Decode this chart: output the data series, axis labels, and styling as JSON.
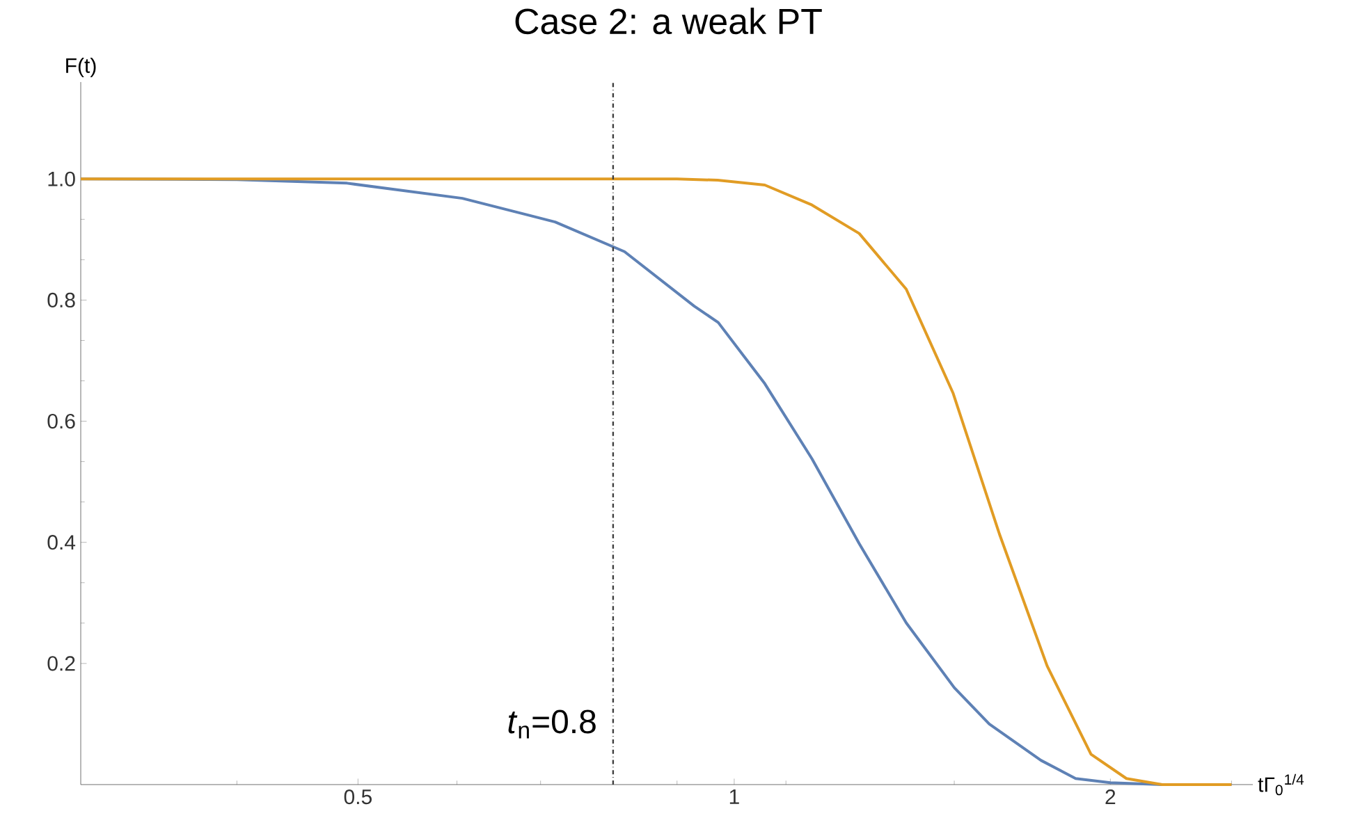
{
  "chart_data": {
    "type": "line",
    "title": "Case 2: a weak PT",
    "xlabel": "tΓ$_{0}$$^{1/4}$",
    "ylabel": "F(t)",
    "log": "x",
    "xlim": [
      0.3,
      2.6
    ],
    "xticks": [
      0.5,
      1,
      2
    ],
    "ylim": [
      0,
      1.16
    ],
    "yticks": [
      0.2,
      0.4,
      0.6,
      {
        "value": 0.8,
        "label": "0.8"
      },
      {
        "value": 1,
        "label": "1.0"
      }
    ],
    "grid": false,
    "legend": false,
    "marker": "none",
    "line_style": "solid",
    "series": [
      {
        "color": "#5e81b5",
        "x": [
          0.3,
          0.4,
          0.49,
          0.606,
          0.719,
          0.817,
          0.929,
          0.971,
          1.058,
          1.154,
          1.259,
          1.373,
          1.5,
          1.6,
          1.76,
          1.876,
          2.0,
          2.2,
          2.5
        ],
        "values": [
          1.0,
          0.999,
          0.993,
          0.968,
          0.929,
          0.88,
          0.79,
          0.763,
          0.662,
          0.538,
          0.398,
          0.267,
          0.16,
          0.1,
          0.04,
          0.01,
          0.003,
          0.0,
          0.0
        ]
      },
      {
        "color": "#e19c24",
        "x": [
          0.3,
          0.6,
          0.9,
          0.97,
          1.058,
          1.154,
          1.259,
          1.373,
          1.497,
          1.63,
          1.78,
          1.93,
          2.06,
          2.2,
          2.5
        ],
        "values": [
          1.0,
          1.0,
          1.0,
          0.998,
          0.99,
          0.957,
          0.91,
          0.818,
          0.646,
          0.414,
          0.196,
          0.05,
          0.01,
          0.0,
          0.0
        ]
      }
    ],
    "ref_lines": [
      {
        "axis": "x",
        "value": 0.8,
        "color": "#404040",
        "line_style": "dashdot"
      }
    ],
    "annotations": [
      {
        "text": "*t*$_{n}$=0.8",
        "x": 0.8,
        "y": 0.1
      }
    ]
  }
}
